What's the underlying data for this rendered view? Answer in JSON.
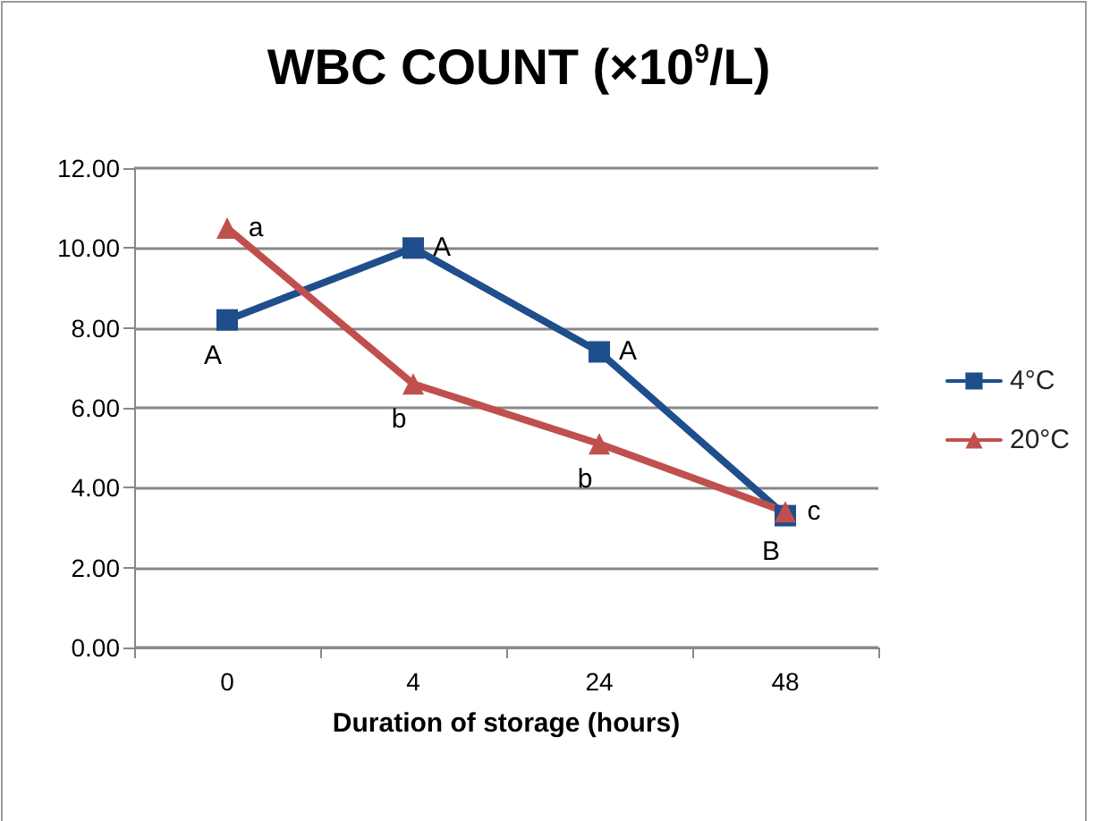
{
  "chart_data": {
    "type": "line",
    "title": "WBC COUNT (×10$^{9}$/L)",
    "xlabel": "Duration of storage (hours)",
    "categories": [
      "0",
      "4",
      "24",
      "48"
    ],
    "series": [
      {
        "name": "4°C",
        "color": "#1f4e8c",
        "marker": "square",
        "values": [
          8.2,
          10.0,
          7.4,
          3.3
        ]
      },
      {
        "name": "20°C",
        "color": "#c0504d",
        "marker": "triangle",
        "values": [
          10.5,
          6.6,
          5.1,
          3.4
        ]
      }
    ],
    "ylim": [
      0,
      12
    ],
    "yticks": [
      {
        "value": 0,
        "label": "0.00"
      },
      {
        "value": 2,
        "label": "2.00"
      },
      {
        "value": 4,
        "label": "4.00"
      },
      {
        "value": 6,
        "label": "6.00"
      },
      {
        "value": 8,
        "label": "8.00"
      },
      {
        "value": 10,
        "label": "10.00"
      },
      {
        "value": 12,
        "label": "12.00"
      }
    ],
    "grid": "y",
    "legend": "right",
    "annotations": [
      {
        "text": "A",
        "x": "0",
        "y": 8.2
      },
      {
        "text": "A",
        "x": "4",
        "y": 10.0
      },
      {
        "text": "A",
        "x": "24",
        "y": 7.4
      },
      {
        "text": "B",
        "x": "48",
        "y": 3.3
      },
      {
        "text": "a",
        "x": "0",
        "y": 10.5
      },
      {
        "text": "b",
        "x": "4",
        "y": 6.6
      },
      {
        "text": "b",
        "x": "24",
        "y": 5.1
      },
      {
        "text": "c",
        "x": "48",
        "y": 3.4
      }
    ]
  }
}
